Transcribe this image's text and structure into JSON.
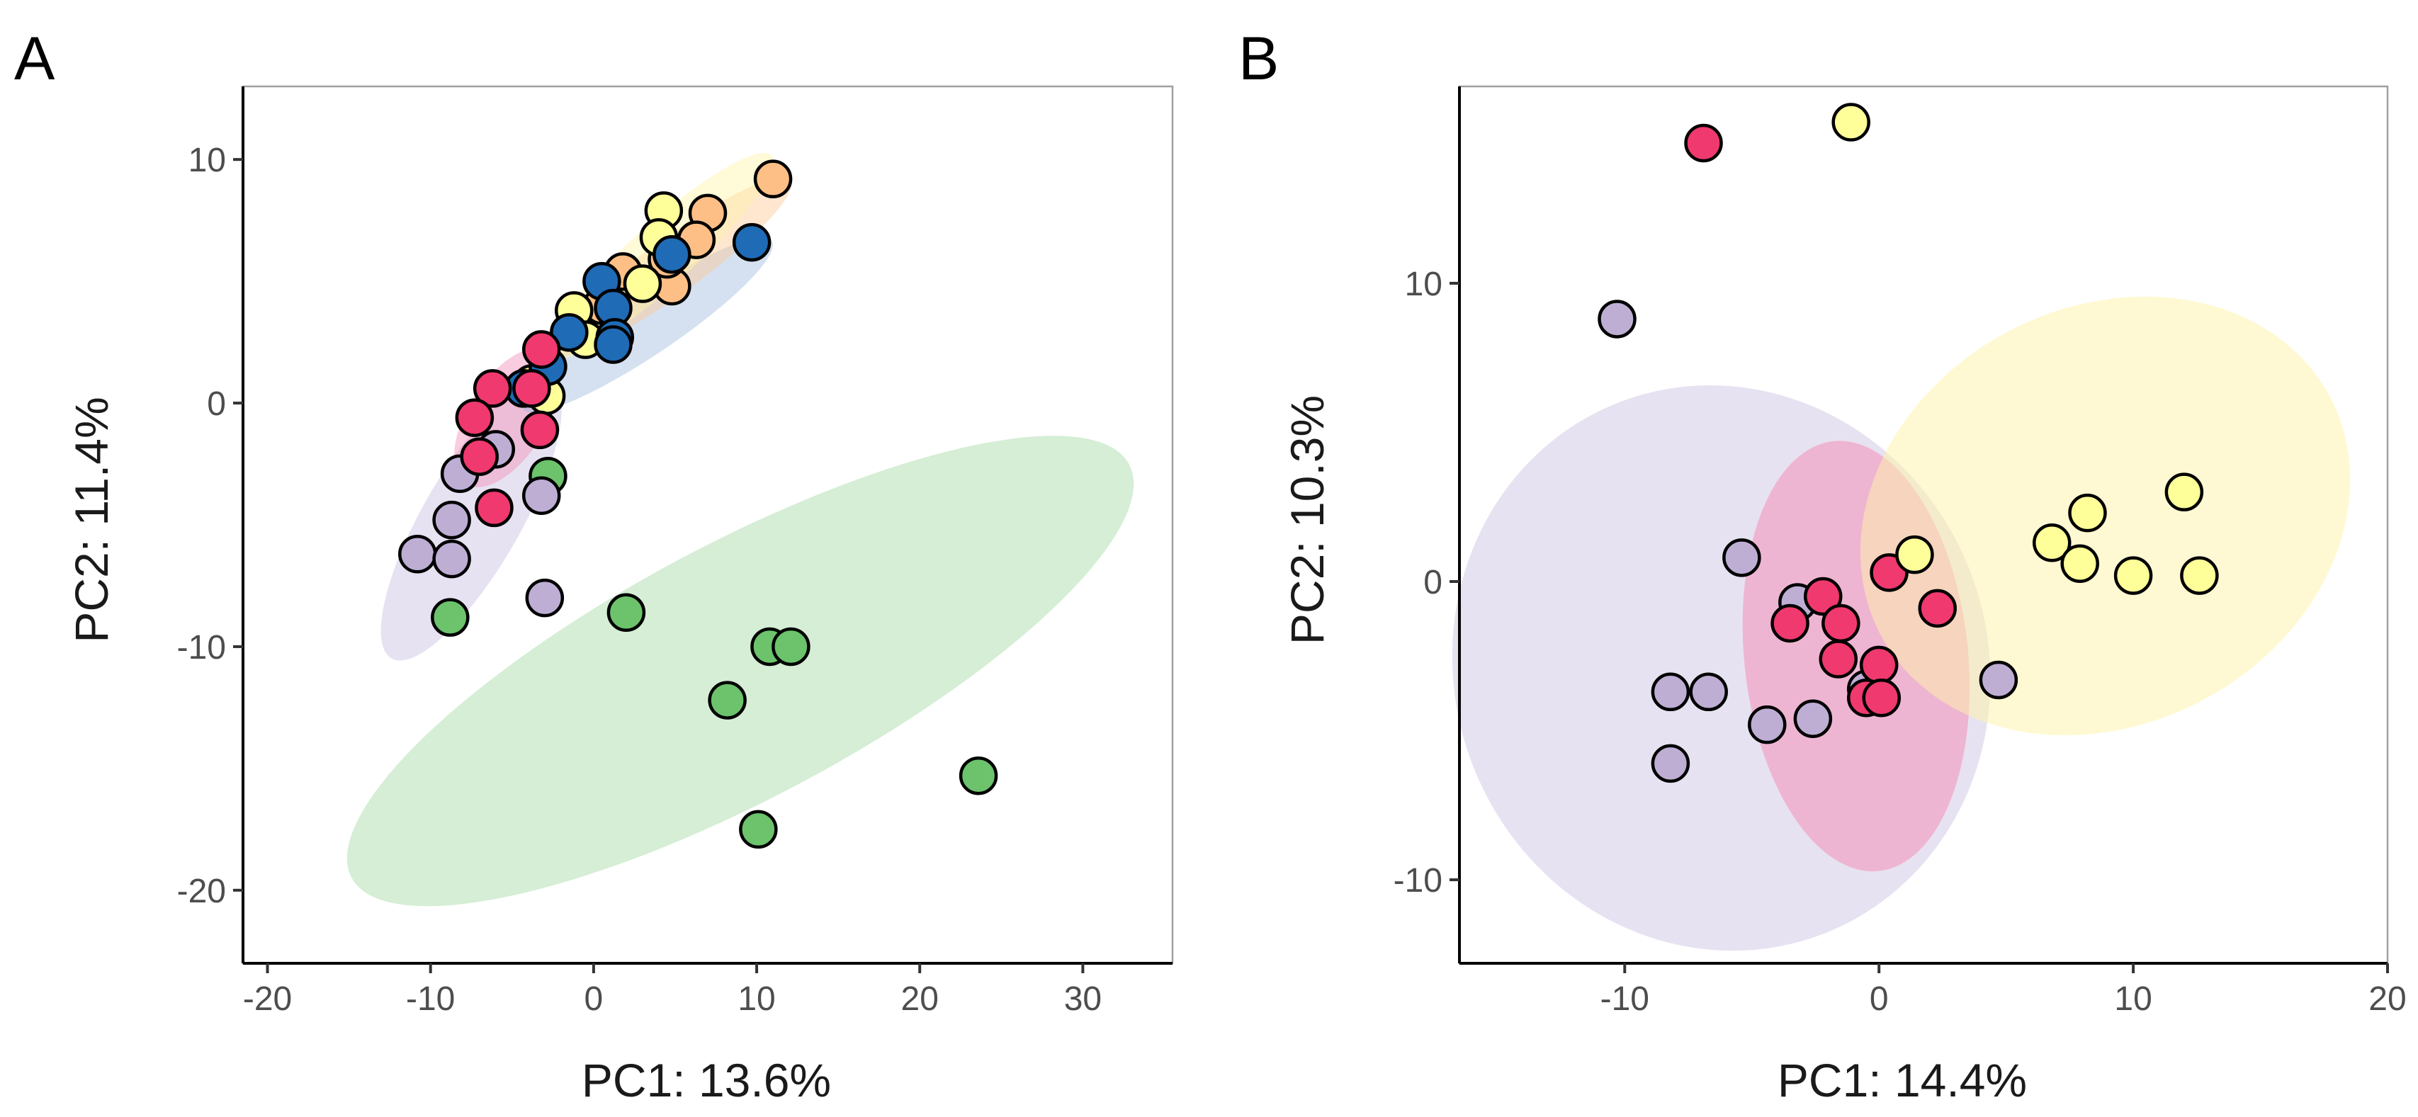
{
  "figure": {
    "panel_a_letter": "A",
    "panel_b_letter": "B"
  },
  "chart_data": [
    {
      "type": "scatter",
      "panel": "A",
      "title": "",
      "xlabel": "PC1: 13.6%",
      "ylabel": "PC2: 11.4%",
      "xlim": [
        -21.5,
        35.5
      ],
      "ylim": [
        -23,
        13
      ],
      "xticks": [
        -20,
        -10,
        0,
        10,
        20,
        30
      ],
      "xtick_labels": [
        "-20",
        "-10",
        "0",
        "10",
        "20",
        "30"
      ],
      "yticks": [
        -20,
        -10,
        0,
        10
      ],
      "ytick_labels": [
        "-20",
        "-10",
        "0",
        "10"
      ],
      "grid": false,
      "legend": "none",
      "ellipses": [
        {
          "group": "green",
          "cx": 9,
          "cy": -11,
          "rx": 27,
          "ry": 7.8,
          "angle": -28,
          "color": "#a8dba8",
          "opacity": 0.48
        },
        {
          "group": "purple",
          "cx": -7.5,
          "cy": -4.8,
          "rx": 9.8,
          "ry": 3.0,
          "angle": -60,
          "color": "#c9bedf",
          "opacity": 0.45
        },
        {
          "group": "pink",
          "cx": -5.3,
          "cy": -0.6,
          "rx": 4.8,
          "ry": 2.4,
          "angle": -58,
          "color": "#f48fb8",
          "opacity": 0.45
        },
        {
          "group": "blue",
          "cx": 3.3,
          "cy": 3.2,
          "rx": 9.2,
          "ry": 1.8,
          "angle": -34,
          "color": "#9ab8dc",
          "opacity": 0.42
        },
        {
          "group": "orange",
          "cx": 4.8,
          "cy": 5.6,
          "rx": 9.0,
          "ry": 1.7,
          "angle": -36,
          "color": "#fcc894",
          "opacity": 0.45
        },
        {
          "group": "yellow",
          "cx": 4.0,
          "cy": 6.0,
          "rx": 9.3,
          "ry": 1.9,
          "angle": -42,
          "color": "#fff4a8",
          "opacity": 0.45
        }
      ],
      "series": [
        {
          "name": "green",
          "color": "#6cc36c",
          "points": [
            [
              -8.8,
              -8.8
            ],
            [
              -2.8,
              -3.0
            ],
            [
              2.0,
              -8.6
            ],
            [
              10.8,
              -10.0
            ],
            [
              12.1,
              -10.0
            ],
            [
              8.2,
              -12.2
            ],
            [
              10.1,
              -17.5
            ],
            [
              23.6,
              -15.3
            ]
          ]
        },
        {
          "name": "purple",
          "color": "#beaed4",
          "points": [
            [
              -10.8,
              -6.2
            ],
            [
              -8.7,
              -6.4
            ],
            [
              -8.7,
              -4.8
            ],
            [
              -8.2,
              -2.9
            ],
            [
              -6.0,
              -1.9
            ],
            [
              -3.2,
              -3.8
            ],
            [
              -3.0,
              -8.0
            ]
          ]
        },
        {
          "name": "orange",
          "color": "#fdbf86",
          "points": [
            [
              11.0,
              9.2
            ],
            [
              7.0,
              7.8
            ],
            [
              6.3,
              6.7
            ],
            [
              4.8,
              4.8
            ],
            [
              4.5,
              5.9
            ],
            [
              1.8,
              5.4
            ],
            [
              0.5,
              4.0
            ]
          ]
        },
        {
          "name": "yellow",
          "color": "#ffff9a",
          "points": [
            [
              4.3,
              7.9
            ],
            [
              4.0,
              6.8
            ],
            [
              3.0,
              4.9
            ],
            [
              -1.2,
              3.8
            ],
            [
              -0.5,
              2.6
            ],
            [
              -2.9,
              0.3
            ],
            [
              -3.8,
              0.8
            ]
          ]
        },
        {
          "name": "blue",
          "color": "#1f6bb6",
          "points": [
            [
              9.7,
              6.6
            ],
            [
              4.8,
              6.1
            ],
            [
              0.5,
              5.0
            ],
            [
              1.2,
              3.9
            ],
            [
              1.3,
              2.7
            ],
            [
              1.2,
              2.4
            ],
            [
              -1.5,
              2.9
            ],
            [
              -2.8,
              1.5
            ],
            [
              -4.3,
              0.6
            ]
          ]
        },
        {
          "name": "pink",
          "color": "#f0396e",
          "points": [
            [
              -3.2,
              2.2
            ],
            [
              -3.8,
              0.6
            ],
            [
              -6.2,
              0.6
            ],
            [
              -7.3,
              -0.6
            ],
            [
              -7.0,
              -2.2
            ],
            [
              -3.3,
              -1.1
            ],
            [
              -6.1,
              -4.3
            ]
          ]
        }
      ]
    },
    {
      "type": "scatter",
      "panel": "B",
      "title": "",
      "xlabel": "PC1: 14.4%",
      "ylabel": "PC2: 10.3%",
      "xlim": [
        -16.5,
        20
      ],
      "ylim": [
        -12.8,
        16.6
      ],
      "xticks": [
        -10,
        0,
        10,
        20
      ],
      "xtick_labels": [
        "-10",
        "0",
        "10",
        "20"
      ],
      "yticks": [
        -10,
        0,
        10
      ],
      "ytick_labels": [
        "-10",
        "0",
        "10"
      ],
      "grid": false,
      "legend": "none",
      "ellipses": [
        {
          "group": "purple",
          "cx": -6.2,
          "cy": -2.9,
          "rx": 10.5,
          "ry": 11.2,
          "angle": -20,
          "color": "#c9bedf",
          "opacity": 0.45
        },
        {
          "group": "pink",
          "cx": -0.9,
          "cy": -2.5,
          "rx": 4.4,
          "ry": 8.5,
          "angle": -6,
          "color": "#f48fb8",
          "opacity": 0.55
        },
        {
          "group": "yellow",
          "cx": 8.9,
          "cy": 2.2,
          "rx": 10.0,
          "ry": 8.2,
          "angle": -28,
          "color": "#fff4a8",
          "opacity": 0.5
        }
      ],
      "series": [
        {
          "name": "purple",
          "color": "#beaed4",
          "points": [
            [
              -10.3,
              8.8
            ],
            [
              -5.4,
              0.8
            ],
            [
              -3.2,
              -0.7
            ],
            [
              -8.2,
              -3.7
            ],
            [
              -6.7,
              -3.7
            ],
            [
              -8.2,
              -6.1
            ],
            [
              -4.4,
              -4.8
            ],
            [
              -2.6,
              -4.6
            ],
            [
              -0.5,
              -3.6
            ],
            [
              4.7,
              -3.3
            ]
          ]
        },
        {
          "name": "pink",
          "color": "#f0396e",
          "points": [
            [
              -6.9,
              14.7
            ],
            [
              -2.2,
              -0.5
            ],
            [
              -3.5,
              -1.4
            ],
            [
              -1.5,
              -1.4
            ],
            [
              -1.6,
              -2.6
            ],
            [
              0.0,
              -2.8
            ],
            [
              0.4,
              0.3
            ],
            [
              2.3,
              -0.9
            ],
            [
              -0.5,
              -3.9
            ],
            [
              0.1,
              -3.9
            ]
          ]
        },
        {
          "name": "yellow",
          "color": "#ffff9a",
          "points": [
            [
              -1.1,
              15.4
            ],
            [
              1.4,
              0.9
            ],
            [
              6.8,
              1.3
            ],
            [
              8.2,
              2.3
            ],
            [
              12.0,
              3.0
            ],
            [
              7.9,
              0.6
            ],
            [
              10.0,
              0.2
            ],
            [
              12.6,
              0.2
            ]
          ]
        }
      ]
    }
  ]
}
